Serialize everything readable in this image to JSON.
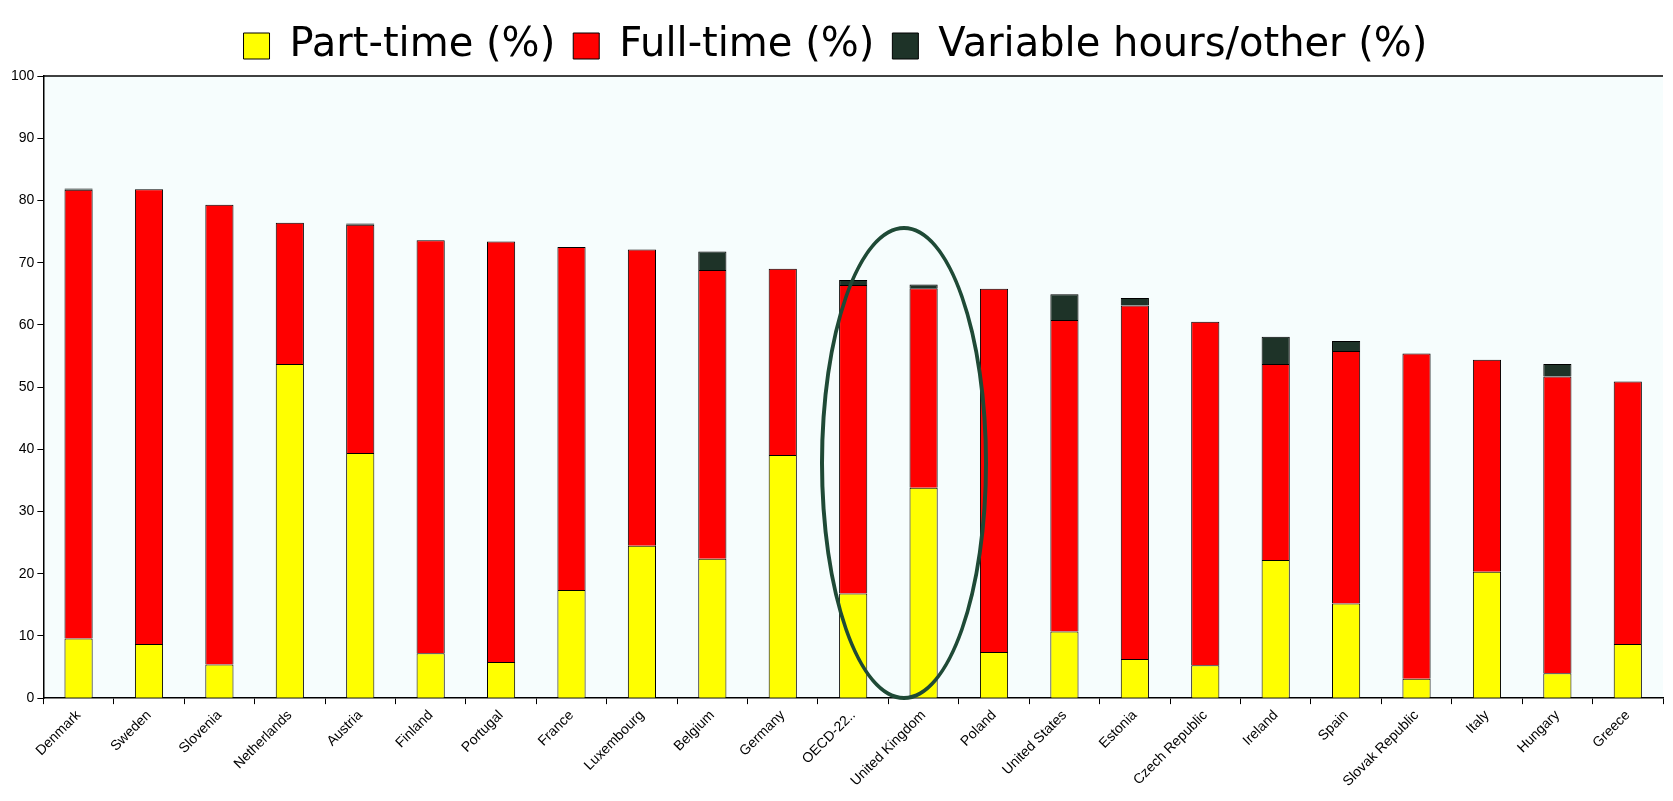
{
  "chart_data": {
    "type": "bar",
    "stacked": true,
    "categories": [
      "Denmark",
      "Sweden",
      "Slovenia",
      "Netherlands",
      "Austria",
      "Finland",
      "Portugal",
      "France",
      "Luxembourg",
      "Belgium",
      "Germany",
      "OECD-22..",
      "United Kingdom",
      "Poland",
      "United States",
      "Estonia",
      "Czech Republic",
      "Ireland",
      "Spain",
      "Slovak Republic",
      "Italy",
      "Hungary",
      "Greece"
    ],
    "series": [
      {
        "name": "Part-time (%)",
        "color": "#ffff00",
        "values": [
          9.6,
          8.7,
          5.4,
          53.7,
          39.4,
          7.2,
          5.8,
          17.4,
          24.5,
          22.4,
          39.1,
          16.8,
          33.8,
          7.4,
          10.7,
          6.3,
          5.3,
          22.2,
          15.2,
          3.1,
          20.3,
          4.0,
          8.7
        ]
      },
      {
        "name": "Full-time (%)",
        "color": "#ff0000",
        "values": [
          72.1,
          73.1,
          73.9,
          22.7,
          36.7,
          66.4,
          67.6,
          55.1,
          47.6,
          46.4,
          29.9,
          49.6,
          32.1,
          58.4,
          50.1,
          56.8,
          55.2,
          31.5,
          40.6,
          52.3,
          34.1,
          47.7,
          42.2
        ]
      },
      {
        "name": "Variable hours/other (%)",
        "color": "#1e3328",
        "values": [
          0.2,
          0,
          0,
          0,
          0.2,
          0,
          0,
          0,
          0,
          3.0,
          0,
          0.8,
          0.6,
          0,
          4.1,
          1.2,
          0,
          4.4,
          1.6,
          0,
          0,
          2.0,
          0
        ]
      }
    ],
    "ylim": [
      0,
      100
    ],
    "yticks": [
      0,
      10,
      20,
      30,
      40,
      50,
      60,
      70,
      80,
      90,
      100
    ],
    "grid": false,
    "legend": "top"
  }
}
